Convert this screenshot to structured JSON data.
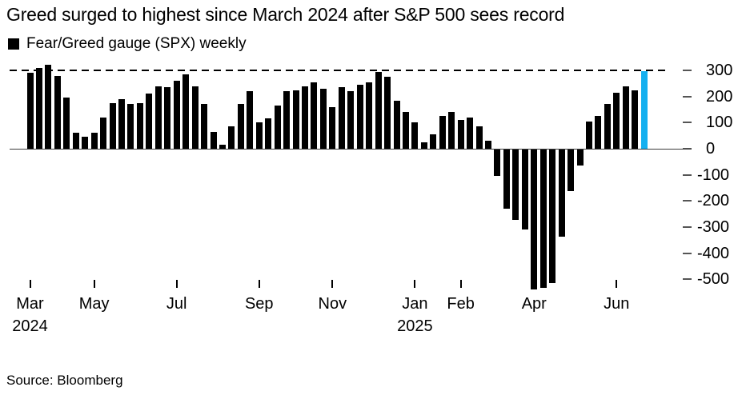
{
  "title": "Greed surged to highest since March 2024 after S&P 500 sees record",
  "legend": {
    "label": "Fear/Greed gauge (SPX) weekly",
    "swatch_color": "#000000"
  },
  "source": "Source: Bloomberg",
  "chart_data": {
    "type": "bar",
    "title": "Greed surged to highest since March 2024 after S&P 500 sees record",
    "series_label": "Fear/Greed gauge (SPX) weekly",
    "frequency": "weekly",
    "bar_color": "#000000",
    "highlight_color": "#15b0f0",
    "highlight_index": 67,
    "grid": "off",
    "axis_labels_side": "right",
    "ylim": [
      -560,
      330
    ],
    "y_ticks": [
      300,
      200,
      100,
      0,
      -100,
      -200,
      -300,
      -400,
      -500
    ],
    "reference_line_value": 300,
    "x_ticks": [
      {
        "label": "Mar",
        "year": "2024",
        "bar_index": 0
      },
      {
        "label": "May",
        "bar_index": 7
      },
      {
        "label": "Jul",
        "bar_index": 16
      },
      {
        "label": "Sep",
        "bar_index": 25
      },
      {
        "label": "Nov",
        "bar_index": 33
      },
      {
        "label": "Jan",
        "year": "2025",
        "bar_index": 42
      },
      {
        "label": "Feb",
        "bar_index": 47
      },
      {
        "label": "Apr",
        "bar_index": 55
      },
      {
        "label": "Jun",
        "bar_index": 64
      }
    ],
    "values": [
      290,
      310,
      320,
      280,
      195,
      60,
      45,
      60,
      120,
      175,
      190,
      170,
      175,
      210,
      240,
      235,
      260,
      285,
      240,
      170,
      65,
      15,
      85,
      170,
      220,
      100,
      115,
      165,
      220,
      225,
      240,
      255,
      230,
      160,
      235,
      220,
      245,
      255,
      295,
      275,
      185,
      140,
      100,
      25,
      55,
      125,
      140,
      110,
      120,
      85,
      30,
      -100,
      -225,
      -270,
      -305,
      -535,
      -530,
      -510,
      -335,
      -160,
      -60,
      105,
      125,
      170,
      215,
      240,
      225,
      297
    ]
  }
}
